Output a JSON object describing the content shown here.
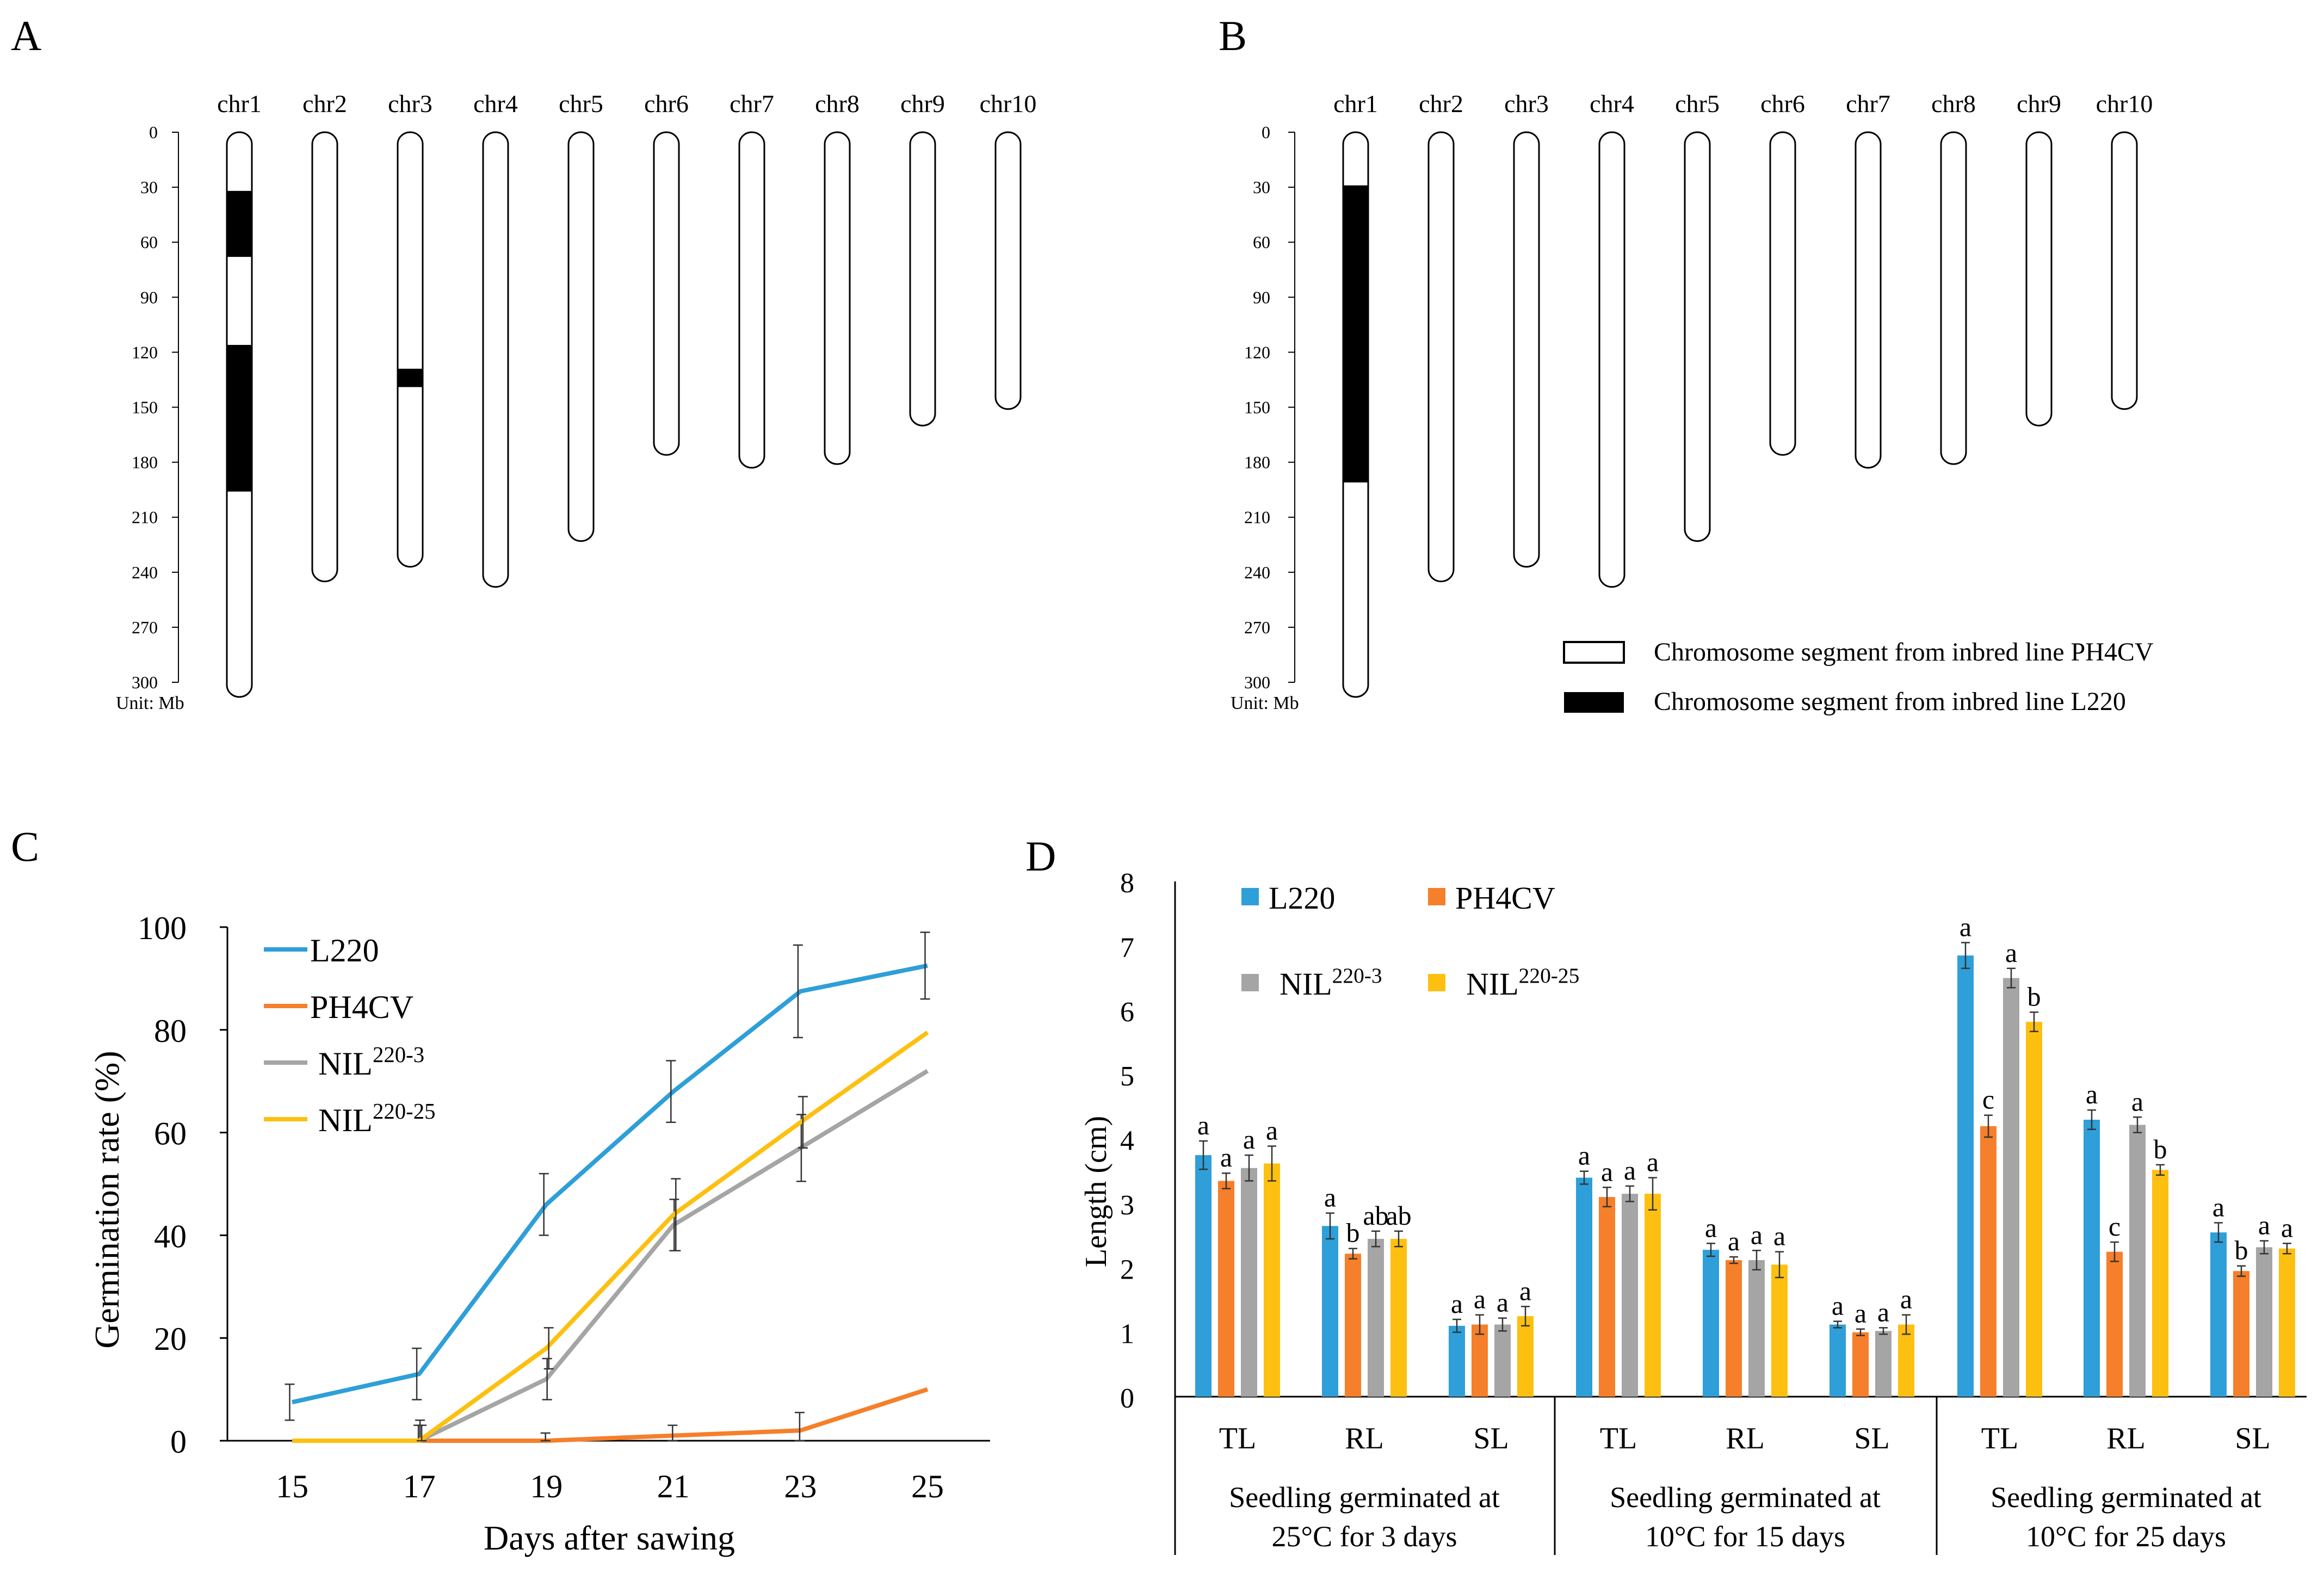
{
  "colors": {
    "L220": "#2e9fd8",
    "PH4CV": "#f57f2a",
    "NIL3": "#a5a5a5",
    "NIL25": "#fdc010",
    "black": "#000000"
  },
  "panelA": {
    "label": "A",
    "chromosomes": [
      "chr1",
      "chr2",
      "chr3",
      "chr4",
      "chr5",
      "chr6",
      "chr7",
      "chr8",
      "chr9",
      "chr10"
    ],
    "lengths_mb": [
      308,
      245,
      237,
      248,
      223,
      176,
      183,
      181,
      160,
      151
    ],
    "l220_segments_mb": [
      [
        [
          32,
          68
        ],
        [
          116,
          196
        ]
      ],
      [],
      [
        [
          129,
          139
        ]
      ],
      [],
      [],
      [],
      [],
      [],
      [],
      []
    ],
    "y_ticks": [
      "0",
      "30",
      "60",
      "90",
      "120",
      "150",
      "180",
      "210",
      "240",
      "270",
      "300"
    ],
    "unit": "Unit: Mb"
  },
  "panelB": {
    "label": "B",
    "chromosomes": [
      "chr1",
      "chr2",
      "chr3",
      "chr4",
      "chr5",
      "chr6",
      "chr7",
      "chr8",
      "chr9",
      "chr10"
    ],
    "lengths_mb": [
      308,
      245,
      237,
      248,
      223,
      176,
      183,
      181,
      160,
      151
    ],
    "l220_segments_mb": [
      [
        [
          29,
          191
        ]
      ],
      [],
      [],
      [],
      [],
      [],
      [],
      [],
      [],
      []
    ],
    "y_ticks": [
      "0",
      "30",
      "60",
      "90",
      "120",
      "150",
      "180",
      "210",
      "240",
      "270",
      "300"
    ],
    "unit": "Unit: Mb",
    "legend": [
      "Chromosome segment from inbred line PH4CV",
      "Chromosome segment from inbred line L220"
    ]
  },
  "chart_data": [
    {
      "panel": "C",
      "type": "line",
      "xlabel": "Days after sawing",
      "ylabel": "Germination rate (%)",
      "x": [
        15,
        17,
        19,
        21,
        23,
        25
      ],
      "ylim": [
        0,
        100
      ],
      "y_ticks": [
        "0",
        "20",
        "40",
        "60",
        "80",
        "100"
      ],
      "series": [
        {
          "name": "L220",
          "values": [
            7.5,
            13,
            46,
            68,
            87.5,
            92.5
          ],
          "errors": [
            3.5,
            5,
            6,
            6,
            9,
            6.5
          ]
        },
        {
          "name": "PH4CV",
          "values": [
            0,
            0,
            0,
            1,
            2,
            10
          ],
          "errors": [
            0,
            3,
            1.5,
            2,
            3.5,
            0
          ]
        },
        {
          "name": "NIL",
          "sup": "220-3",
          "values": [
            0,
            0,
            12,
            42,
            57,
            72
          ],
          "errors": [
            0,
            4,
            4,
            5,
            6.5,
            0
          ]
        },
        {
          "name": "NIL",
          "sup": "220-25",
          "values": [
            0,
            0,
            18,
            44,
            62,
            79.5
          ],
          "errors": [
            0,
            3,
            4,
            7,
            5,
            0
          ]
        }
      ]
    },
    {
      "panel": "D",
      "type": "bar",
      "ylabel": "Length (cm)",
      "ylim": [
        0,
        8
      ],
      "y_ticks": [
        "0",
        "1",
        "2",
        "3",
        "4",
        "5",
        "6",
        "7",
        "8"
      ],
      "categories": [
        "TL",
        "RL",
        "SL",
        "TL",
        "RL",
        "SL",
        "TL",
        "RL",
        "SL"
      ],
      "groups": [
        [
          "Seedling germinated at",
          "25°C for  3 days"
        ],
        [
          "Seedling germinated at",
          "10°C for 15 days"
        ],
        [
          "Seedling germinated at",
          "10°C for 25 days"
        ]
      ],
      "series": [
        {
          "name": "L220",
          "values": [
            3.75,
            2.65,
            1.1,
            3.4,
            2.28,
            1.12,
            6.85,
            4.3,
            2.55
          ],
          "errors": [
            0.22,
            0.2,
            0.1,
            0.1,
            0.1,
            0.05,
            0.2,
            0.15,
            0.15
          ],
          "letters": [
            "a",
            "a",
            "a",
            "a",
            "a",
            "a",
            "a",
            "a",
            "a"
          ]
        },
        {
          "name": "PH4CV",
          "values": [
            3.35,
            2.22,
            1.12,
            3.1,
            2.12,
            1.0,
            4.2,
            2.25,
            1.95
          ],
          "errors": [
            0.12,
            0.08,
            0.15,
            0.15,
            0.05,
            0.05,
            0.17,
            0.15,
            0.08
          ],
          "letters": [
            "a",
            "b",
            "a",
            "a",
            "a",
            "a",
            "c",
            "c",
            "b"
          ]
        },
        {
          "name": "NIL",
          "sup": "220-3",
          "values": [
            3.55,
            2.45,
            1.12,
            3.15,
            2.12,
            1.02,
            6.5,
            4.22,
            2.32
          ],
          "errors": [
            0.2,
            0.12,
            0.1,
            0.12,
            0.15,
            0.05,
            0.15,
            0.12,
            0.1
          ],
          "letters": [
            "a",
            "ab",
            "a",
            "a",
            "a",
            "a",
            "a",
            "a",
            "a"
          ]
        },
        {
          "name": "NIL",
          "sup": "220-25",
          "values": [
            3.62,
            2.45,
            1.25,
            3.15,
            2.05,
            1.12,
            5.82,
            3.52,
            2.3
          ],
          "errors": [
            0.27,
            0.12,
            0.15,
            0.25,
            0.2,
            0.15,
            0.15,
            0.08,
            0.08
          ],
          "letters": [
            "a",
            "ab",
            "a",
            "a",
            "a",
            "a",
            "b",
            "b",
            "a"
          ]
        }
      ]
    }
  ]
}
